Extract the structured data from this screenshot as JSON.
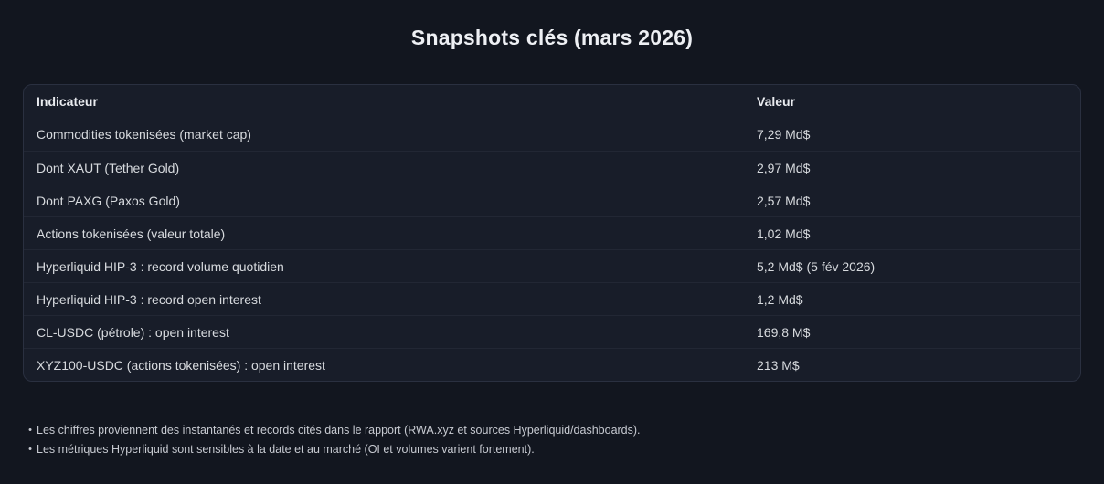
{
  "title": "Snapshots clés (mars 2026)",
  "chart_data": {
    "type": "table",
    "title": "Snapshots clés (mars 2026)",
    "columns": [
      "Indicateur",
      "Valeur"
    ],
    "rows": [
      [
        "Commodities tokenisées (market cap)",
        "7,29 Md$"
      ],
      [
        "Dont XAUT (Tether Gold)",
        "2,97 Md$"
      ],
      [
        "Dont PAXG (Paxos Gold)",
        "2,57 Md$"
      ],
      [
        "Actions tokenisées (valeur totale)",
        "1,02 Md$"
      ],
      [
        "Hyperliquid HIP-3 : record volume quotidien",
        "5,2 Md$ (5 fév 2026)"
      ],
      [
        "Hyperliquid HIP-3 : record open interest",
        "1,2 Md$"
      ],
      [
        "CL-USDC (pétrole) : open interest",
        "169,8 M$"
      ],
      [
        "XYZ100-USDC (actions tokenisées) : open interest",
        "213 M$"
      ]
    ],
    "footnotes": [
      "Les chiffres proviennent des instantanés et records cités dans le rapport (RWA.xyz et sources Hyperliquid/dashboards).",
      "Les métriques Hyperliquid sont sensibles à la date et au marché (OI et volumes varient fortement)."
    ]
  },
  "bullet_glyph": "•",
  "colors": {
    "page_background": "#12161f",
    "card_background": "#181d29",
    "card_border": "#2a3040",
    "row_divider": "#222734",
    "title_text": "#eef0f4",
    "cell_text": "#d7dade",
    "header_text": "#e9ebef",
    "note_text": "#c7cad1"
  }
}
